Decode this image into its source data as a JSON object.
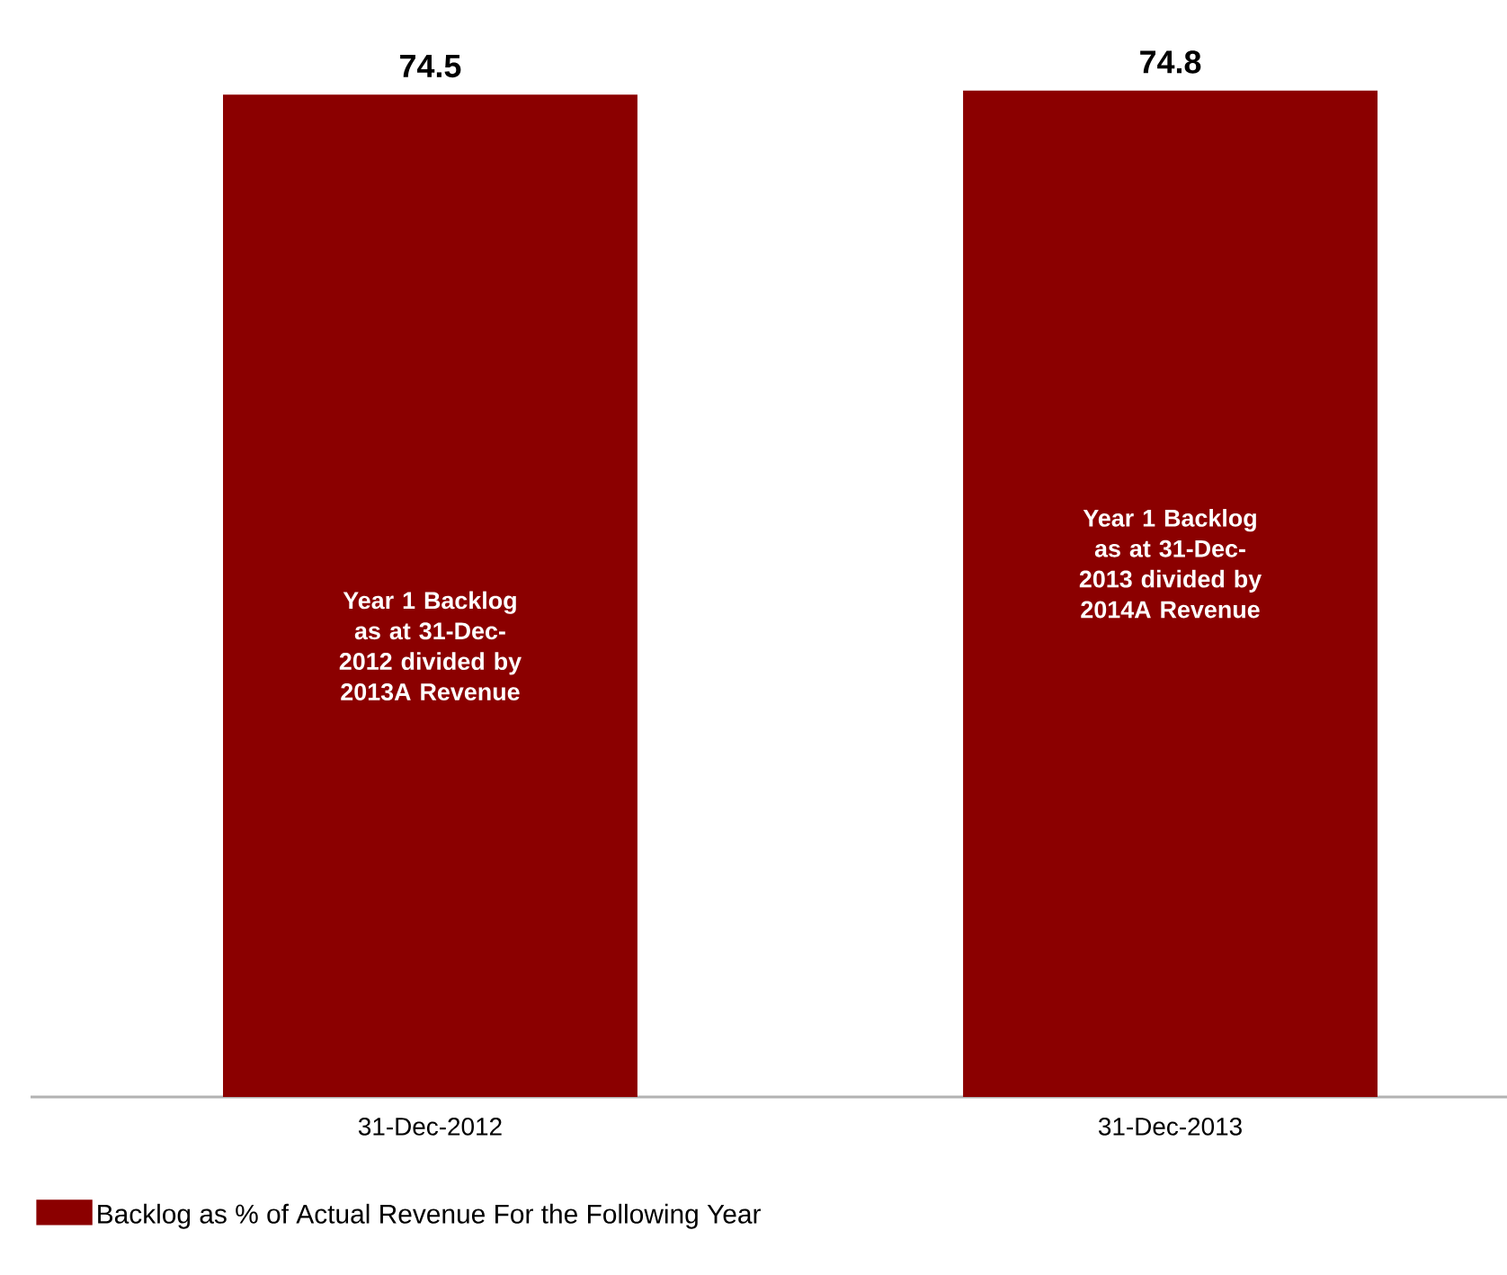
{
  "chart_data": {
    "type": "bar",
    "categories": [
      "31-Dec-2012",
      "31-Dec-2013"
    ],
    "series": [
      {
        "name": "Backlog as % of Actual Revenue For the Following Year",
        "color": "#8b0000",
        "values": [
          74.5,
          74.8
        ]
      }
    ],
    "data_labels": true,
    "legend": "bottom left",
    "tick_labels": "x",
    "annotations": [
      "Year 1 Backlog as at 31-Dec-2012 divided by 2013A Revenue",
      "Year 1 Backlog as at 31-Dec-2013 divided by 2014A Revenue"
    ]
  }
}
